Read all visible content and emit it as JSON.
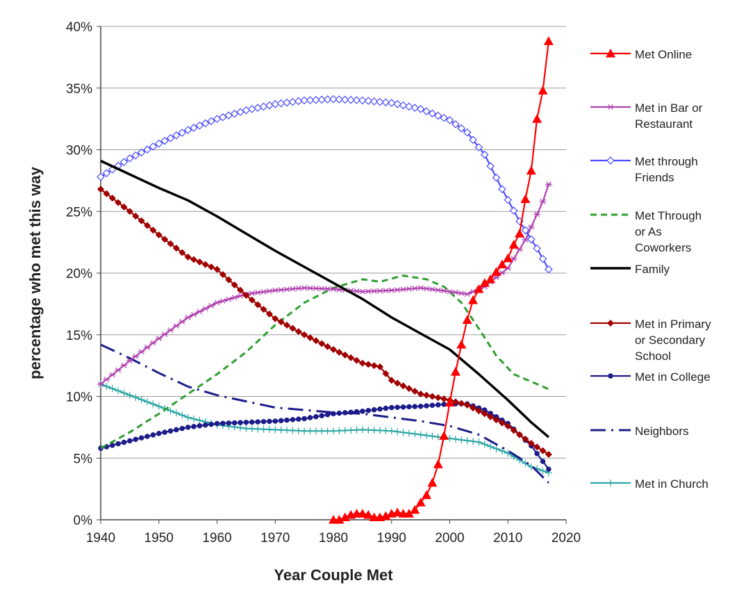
{
  "chart_data": {
    "type": "line",
    "title": "",
    "xlabel": "Year Couple Met",
    "ylabel": "percentage who met this way",
    "xlim": [
      1940,
      2020
    ],
    "ylim": [
      0,
      40
    ],
    "x_ticks": [
      1940,
      1950,
      1960,
      1970,
      1980,
      1990,
      2000,
      2010,
      2020
    ],
    "x_tick_labels": [
      "1940",
      "1950",
      "1960",
      "1970",
      "1980",
      "1990",
      "2000",
      "2010",
      "2020"
    ],
    "y_ticks": [
      0,
      5,
      10,
      15,
      20,
      25,
      30,
      35,
      40
    ],
    "y_tick_labels": [
      "0%",
      "5%",
      "10%",
      "15%",
      "20%",
      "25%",
      "30%",
      "35%",
      "40%"
    ],
    "grid": "horizontal",
    "legend_position": "right",
    "series": [
      {
        "name": "Met Online",
        "color": "#ff0000",
        "line_style": "solid",
        "marker": "triangle-filled",
        "points": [
          [
            1980,
            0
          ],
          [
            1981,
            0
          ],
          [
            1982,
            0.2
          ],
          [
            1983,
            0.4
          ],
          [
            1984,
            0.5
          ],
          [
            1985,
            0.5
          ],
          [
            1986,
            0.4
          ],
          [
            1987,
            0.2
          ],
          [
            1988,
            0.2
          ],
          [
            1989,
            0.3
          ],
          [
            1990,
            0.5
          ],
          [
            1991,
            0.6
          ],
          [
            1992,
            0.5
          ],
          [
            1993,
            0.5
          ],
          [
            1994,
            0.8
          ],
          [
            1995,
            1.4
          ],
          [
            1996,
            2.0
          ],
          [
            1997,
            3.0
          ],
          [
            1998,
            4.5
          ],
          [
            1999,
            6.8
          ],
          [
            2000,
            9.5
          ],
          [
            2001,
            12.0
          ],
          [
            2002,
            14.2
          ],
          [
            2003,
            16.2
          ],
          [
            2004,
            17.8
          ],
          [
            2005,
            18.7
          ],
          [
            2006,
            19.2
          ],
          [
            2007,
            19.5
          ],
          [
            2008,
            20.1
          ],
          [
            2009,
            20.7
          ],
          [
            2010,
            21.2
          ],
          [
            2011,
            22.3
          ],
          [
            2012,
            23.2
          ],
          [
            2013,
            26.0
          ],
          [
            2014,
            28.3
          ],
          [
            2015,
            32.5
          ],
          [
            2016,
            34.8
          ],
          [
            2017,
            38.8
          ]
        ]
      },
      {
        "name": "Met in Bar or Restaurant",
        "color": "#b040b0",
        "line_style": "solid",
        "marker": "star",
        "points": [
          [
            1940,
            11.0
          ],
          [
            1945,
            12.9
          ],
          [
            1950,
            14.7
          ],
          [
            1955,
            16.4
          ],
          [
            1960,
            17.6
          ],
          [
            1965,
            18.3
          ],
          [
            1970,
            18.6
          ],
          [
            1975,
            18.8
          ],
          [
            1980,
            18.7
          ],
          [
            1985,
            18.5
          ],
          [
            1990,
            18.6
          ],
          [
            1995,
            18.8
          ],
          [
            2000,
            18.5
          ],
          [
            2003,
            18.3
          ],
          [
            2006,
            18.9
          ],
          [
            2010,
            20.4
          ],
          [
            2013,
            22.7
          ],
          [
            2016,
            25.8
          ],
          [
            2017,
            27.2
          ]
        ]
      },
      {
        "name": "Met through Friends",
        "color": "#4b4bff",
        "line_style": "solid",
        "marker": "diamond-open",
        "points": [
          [
            1940,
            27.8
          ],
          [
            1945,
            29.3
          ],
          [
            1950,
            30.5
          ],
          [
            1955,
            31.6
          ],
          [
            1960,
            32.5
          ],
          [
            1965,
            33.2
          ],
          [
            1970,
            33.7
          ],
          [
            1975,
            34.0
          ],
          [
            1980,
            34.1
          ],
          [
            1985,
            34.0
          ],
          [
            1990,
            33.8
          ],
          [
            1995,
            33.3
          ],
          [
            2000,
            32.4
          ],
          [
            2003,
            31.4
          ],
          [
            2006,
            29.6
          ],
          [
            2009,
            26.8
          ],
          [
            2012,
            24.2
          ],
          [
            2015,
            22.0
          ],
          [
            2017,
            20.3
          ]
        ]
      },
      {
        "name": "Met Through or As Coworkers",
        "color": "#2e9e2e",
        "line_style": "dashed",
        "marker": "none",
        "points": [
          [
            1940,
            5.8
          ],
          [
            1945,
            7.1
          ],
          [
            1950,
            8.6
          ],
          [
            1955,
            10.2
          ],
          [
            1960,
            11.8
          ],
          [
            1965,
            13.6
          ],
          [
            1970,
            15.8
          ],
          [
            1975,
            17.6
          ],
          [
            1980,
            18.8
          ],
          [
            1985,
            19.5
          ],
          [
            1988,
            19.3
          ],
          [
            1992,
            19.8
          ],
          [
            1996,
            19.5
          ],
          [
            1999,
            18.9
          ],
          [
            2002,
            17.6
          ],
          [
            2005,
            15.5
          ],
          [
            2008,
            13.3
          ],
          [
            2011,
            11.8
          ],
          [
            2014,
            11.2
          ],
          [
            2017,
            10.6
          ]
        ]
      },
      {
        "name": "Family",
        "color": "#000000",
        "line_style": "solid",
        "marker": "none",
        "points": [
          [
            1940,
            29.1
          ],
          [
            1945,
            28.0
          ],
          [
            1950,
            26.9
          ],
          [
            1955,
            25.9
          ],
          [
            1960,
            24.6
          ],
          [
            1965,
            23.2
          ],
          [
            1970,
            21.8
          ],
          [
            1975,
            20.5
          ],
          [
            1980,
            19.2
          ],
          [
            1985,
            17.9
          ],
          [
            1990,
            16.4
          ],
          [
            1995,
            15.1
          ],
          [
            2000,
            13.8
          ],
          [
            2005,
            11.8
          ],
          [
            2010,
            9.7
          ],
          [
            2014,
            7.9
          ],
          [
            2017,
            6.7
          ]
        ]
      },
      {
        "name": "Met in Primary or Secondary School",
        "color": "#a00000",
        "line_style": "solid",
        "marker": "diamond-filled",
        "points": [
          [
            1940,
            26.8
          ],
          [
            1945,
            25.0
          ],
          [
            1950,
            23.1
          ],
          [
            1955,
            21.3
          ],
          [
            1960,
            20.3
          ],
          [
            1965,
            18.2
          ],
          [
            1970,
            16.3
          ],
          [
            1975,
            15.0
          ],
          [
            1980,
            13.8
          ],
          [
            1985,
            12.7
          ],
          [
            1988,
            12.4
          ],
          [
            1990,
            11.3
          ],
          [
            1995,
            10.2
          ],
          [
            2000,
            9.7
          ],
          [
            2003,
            9.3
          ],
          [
            2006,
            8.6
          ],
          [
            2010,
            7.6
          ],
          [
            2014,
            6.2
          ],
          [
            2017,
            5.3
          ]
        ]
      },
      {
        "name": "Met in College",
        "color": "#1c1c8a",
        "line_style": "solid",
        "marker": "circle-filled",
        "points": [
          [
            1940,
            5.8
          ],
          [
            1945,
            6.4
          ],
          [
            1950,
            7.0
          ],
          [
            1955,
            7.5
          ],
          [
            1960,
            7.8
          ],
          [
            1965,
            7.9
          ],
          [
            1970,
            8.0
          ],
          [
            1975,
            8.2
          ],
          [
            1980,
            8.6
          ],
          [
            1985,
            8.8
          ],
          [
            1990,
            9.1
          ],
          [
            1995,
            9.2
          ],
          [
            2000,
            9.4
          ],
          [
            2003,
            9.4
          ],
          [
            2006,
            8.9
          ],
          [
            2010,
            7.8
          ],
          [
            2014,
            6.0
          ],
          [
            2017,
            4.1
          ]
        ]
      },
      {
        "name": "Neighbors",
        "color": "#1c1c8a",
        "line_style": "dashdot",
        "marker": "none",
        "points": [
          [
            1940,
            14.2
          ],
          [
            1945,
            13.1
          ],
          [
            1950,
            11.9
          ],
          [
            1955,
            10.8
          ],
          [
            1960,
            10.1
          ],
          [
            1965,
            9.6
          ],
          [
            1970,
            9.1
          ],
          [
            1975,
            8.9
          ],
          [
            1980,
            8.7
          ],
          [
            1985,
            8.6
          ],
          [
            1990,
            8.3
          ],
          [
            1995,
            8.0
          ],
          [
            2000,
            7.6
          ],
          [
            2005,
            6.9
          ],
          [
            2010,
            5.6
          ],
          [
            2014,
            4.4
          ],
          [
            2017,
            3.0
          ]
        ]
      },
      {
        "name": "Met in Church",
        "color": "#2aa5a5",
        "line_style": "solid",
        "marker": "plus",
        "points": [
          [
            1940,
            11.0
          ],
          [
            1945,
            10.1
          ],
          [
            1950,
            9.2
          ],
          [
            1955,
            8.3
          ],
          [
            1960,
            7.7
          ],
          [
            1965,
            7.4
          ],
          [
            1970,
            7.3
          ],
          [
            1975,
            7.2
          ],
          [
            1980,
            7.2
          ],
          [
            1985,
            7.3
          ],
          [
            1990,
            7.2
          ],
          [
            1995,
            6.9
          ],
          [
            2000,
            6.6
          ],
          [
            2005,
            6.3
          ],
          [
            2010,
            5.4
          ],
          [
            2014,
            4.3
          ],
          [
            2017,
            3.8
          ]
        ]
      }
    ],
    "legend": [
      {
        "series": "Met Online",
        "lines": [
          "Met Online"
        ]
      },
      {
        "series": "Met in Bar or Restaurant",
        "lines": [
          "Met in Bar or",
          "Restaurant"
        ]
      },
      {
        "series": "Met through Friends",
        "lines": [
          "Met through",
          "Friends"
        ]
      },
      {
        "series": "Met Through or As Coworkers",
        "lines": [
          "Met Through",
          "or As",
          "Coworkers"
        ]
      },
      {
        "series": "Family",
        "lines": [
          "Family"
        ]
      },
      {
        "series": "Met in Primary or Secondary School",
        "lines": [
          "Met in Primary",
          "or Secondary",
          "School"
        ]
      },
      {
        "series": "Met in College",
        "lines": [
          "Met in College"
        ]
      },
      {
        "series": "Neighbors",
        "lines": [
          "Neighbors"
        ]
      },
      {
        "series": "Met in Church",
        "lines": [
          "Met in Church"
        ]
      }
    ]
  }
}
